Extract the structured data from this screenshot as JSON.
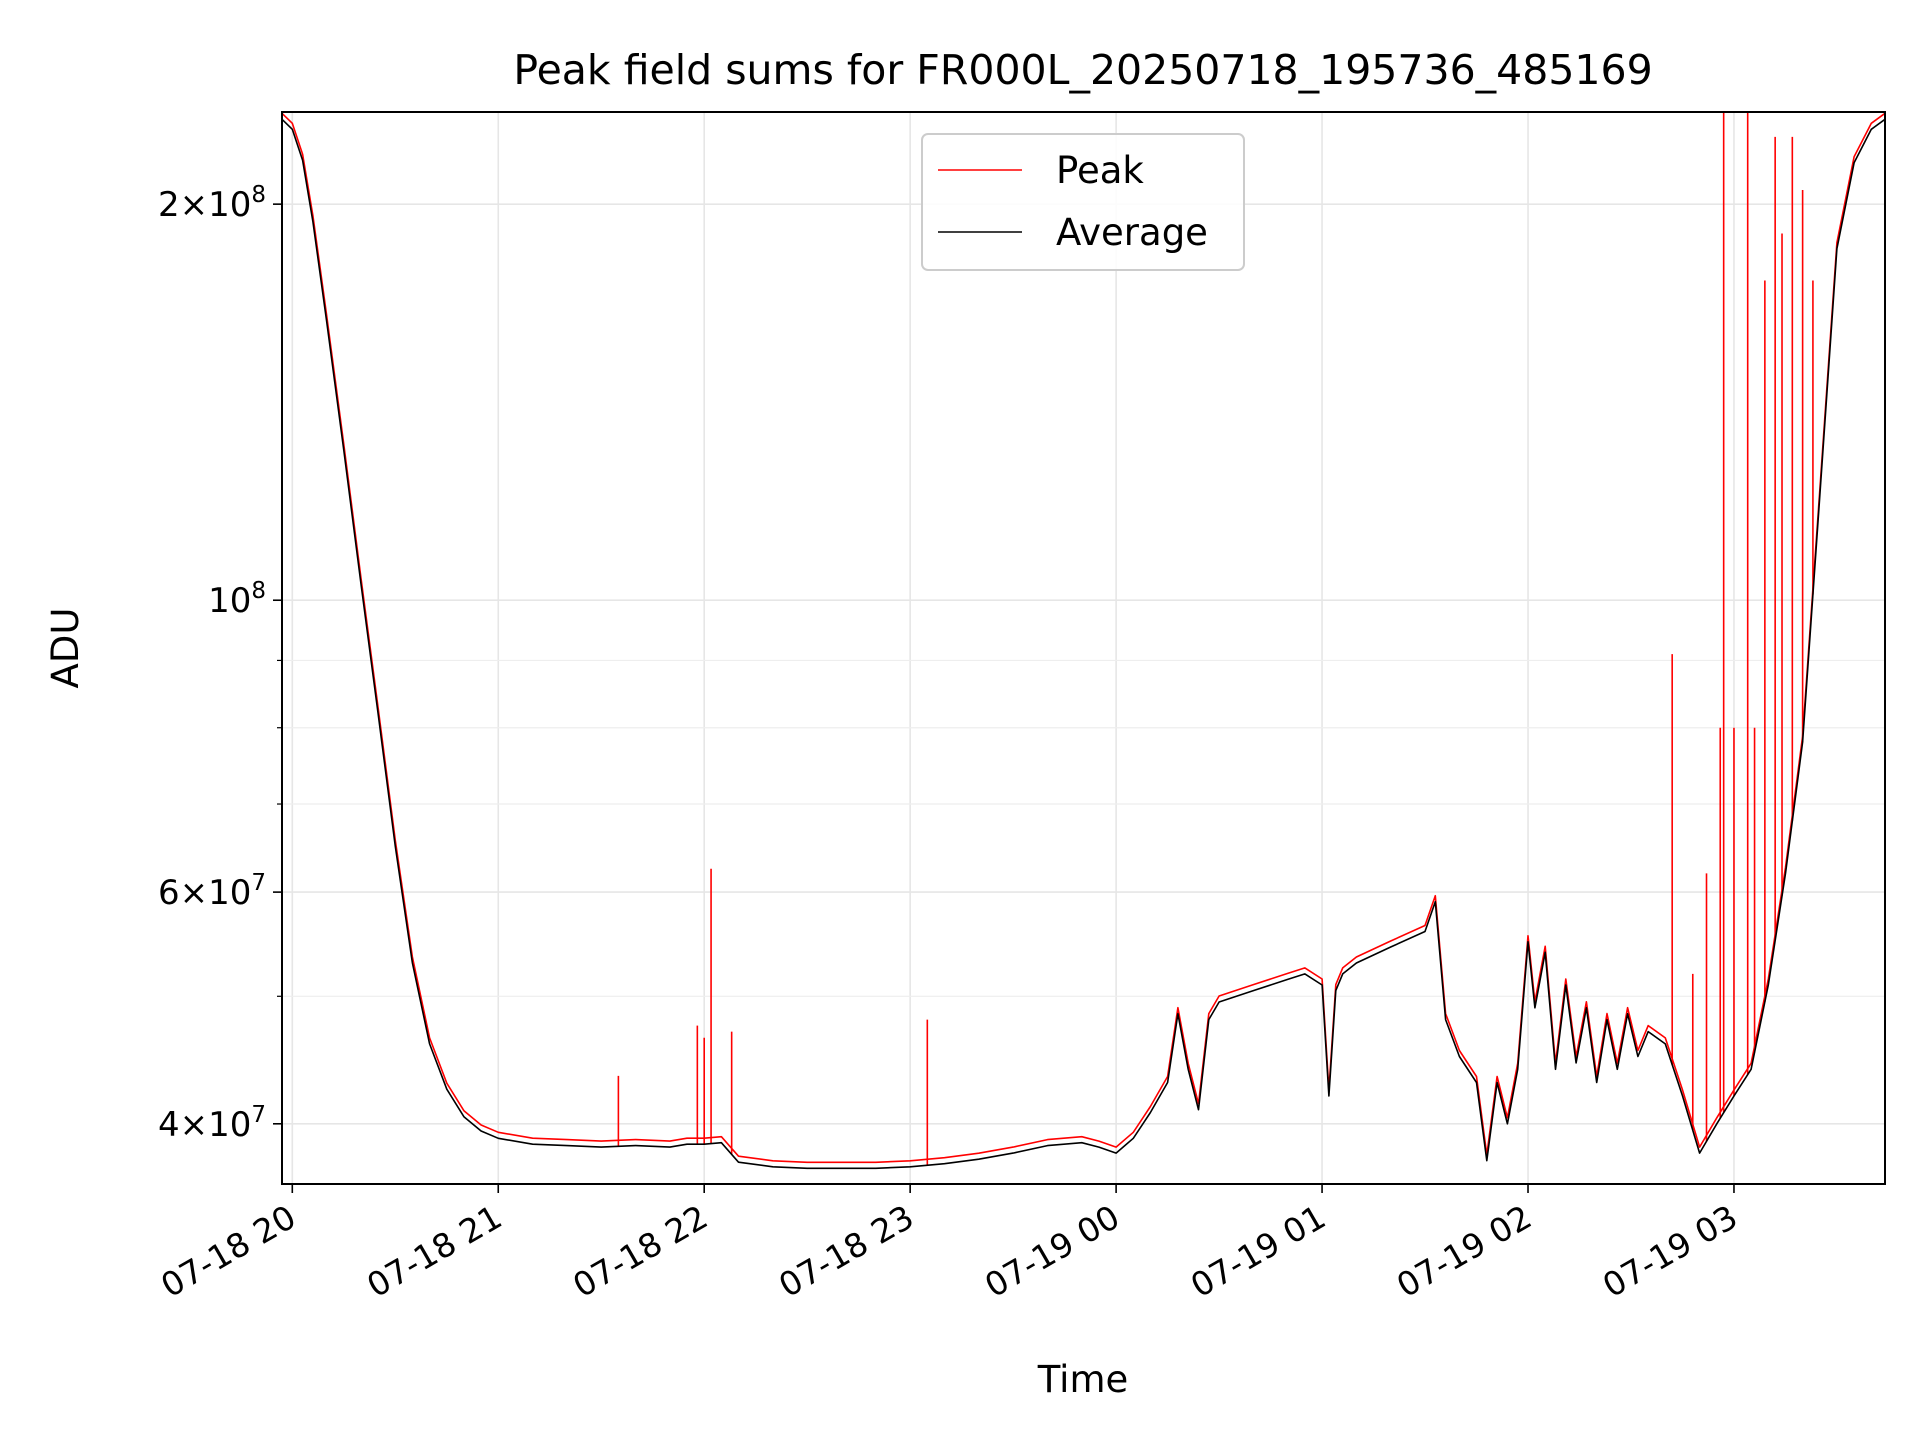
{
  "chart_data": {
    "type": "line",
    "title": "Peak field sums for FR000L_20250718_195736_485169",
    "xlabel": "Time",
    "ylabel": "ADU",
    "y_scale": "log",
    "grid": true,
    "legend_placement": "upper-center",
    "xlim": [
      "07-18 19:57",
      "07-19 03:44"
    ],
    "ylim": [
      36000000,
      235000000
    ],
    "x_ticks": [
      "07-18 20",
      "07-18 21",
      "07-18 22",
      "07-18 23",
      "07-19 00",
      "07-19 01",
      "07-19 02",
      "07-19 03"
    ],
    "y_major_ticks": [
      {
        "value": 40000000,
        "mantissa": "4",
        "exp": "7"
      },
      {
        "value": 60000000,
        "mantissa": "6",
        "exp": "7"
      },
      {
        "value": 100000000,
        "mantissa": "",
        "exp": "8"
      },
      {
        "value": 200000000,
        "mantissa": "2",
        "exp": "8"
      }
    ],
    "y_minor_ticks": [
      50000000,
      70000000,
      80000000,
      90000000
    ],
    "series": [
      {
        "name": "Average",
        "color": "#000000",
        "x": [
          "07-18 19:57",
          "07-18 20:00",
          "07-18 20:03",
          "07-18 20:06",
          "07-18 20:10",
          "07-18 20:15",
          "07-18 20:20",
          "07-18 20:25",
          "07-18 20:30",
          "07-18 20:35",
          "07-18 20:40",
          "07-18 20:45",
          "07-18 20:50",
          "07-18 20:55",
          "07-18 21:00",
          "07-18 21:10",
          "07-18 21:20",
          "07-18 21:30",
          "07-18 21:40",
          "07-18 21:50",
          "07-18 21:55",
          "07-18 22:00",
          "07-18 22:05",
          "07-18 22:10",
          "07-18 22:20",
          "07-18 22:30",
          "07-18 22:40",
          "07-18 22:50",
          "07-18 23:00",
          "07-18 23:10",
          "07-18 23:20",
          "07-18 23:30",
          "07-18 23:40",
          "07-18 23:50",
          "07-18 23:55",
          "07-19 00:00",
          "07-19 00:05",
          "07-19 00:10",
          "07-19 00:15",
          "07-19 00:18",
          "07-19 00:21",
          "07-19 00:24",
          "07-19 00:27",
          "07-19 00:30",
          "07-19 00:40",
          "07-19 00:50",
          "07-19 00:55",
          "07-19 01:00",
          "07-19 01:02",
          "07-19 01:04",
          "07-19 01:06",
          "07-19 01:10",
          "07-19 01:20",
          "07-19 01:30",
          "07-19 01:33",
          "07-19 01:36",
          "07-19 01:40",
          "07-19 01:45",
          "07-19 01:48",
          "07-19 01:51",
          "07-19 01:54",
          "07-19 01:57",
          "07-19 02:00",
          "07-19 02:02",
          "07-19 02:05",
          "07-19 02:08",
          "07-19 02:11",
          "07-19 02:14",
          "07-19 02:17",
          "07-19 02:20",
          "07-19 02:23",
          "07-19 02:26",
          "07-19 02:29",
          "07-19 02:32",
          "07-19 02:35",
          "07-19 02:40",
          "07-19 02:45",
          "07-19 02:50",
          "07-19 02:55",
          "07-19 03:00",
          "07-19 03:05",
          "07-19 03:10",
          "07-19 03:15",
          "07-19 03:20",
          "07-19 03:25",
          "07-19 03:30",
          "07-19 03:35",
          "07-19 03:40",
          "07-19 03:44"
        ],
        "y": [
          232000000,
          228000000,
          216000000,
          194000000,
          163000000,
          130000000,
          103000000,
          82000000,
          65000000,
          53000000,
          46000000,
          42500000,
          40500000,
          39500000,
          39000000,
          38600000,
          38500000,
          38400000,
          38500000,
          38400000,
          38600000,
          38600000,
          38700000,
          37400000,
          37100000,
          37000000,
          37000000,
          37000000,
          37100000,
          37300000,
          37600000,
          38000000,
          38500000,
          38700000,
          38400000,
          38000000,
          39000000,
          40800000,
          43000000,
          48500000,
          44000000,
          41000000,
          48000000,
          49500000,
          50500000,
          51500000,
          52000000,
          51000000,
          42000000,
          50500000,
          52000000,
          53000000,
          54500000,
          56000000,
          59000000,
          48000000,
          45000000,
          43000000,
          37500000,
          43000000,
          40000000,
          44000000,
          55000000,
          49000000,
          54000000,
          44000000,
          51000000,
          44500000,
          49000000,
          43000000,
          48000000,
          44000000,
          48500000,
          45000000,
          47000000,
          46000000,
          42000000,
          38000000,
          40000000,
          42000000,
          44000000,
          51000000,
          62000000,
          78000000,
          120000000,
          185000000,
          215000000,
          228000000,
          232000000
        ]
      },
      {
        "name": "Peak",
        "color": "#ff0000",
        "spikes": [
          {
            "x": "07-18 21:35",
            "y": 43500000
          },
          {
            "x": "07-18 21:58",
            "y": 47500000
          },
          {
            "x": "07-18 22:00",
            "y": 46500000
          },
          {
            "x": "07-18 22:02",
            "y": 62500000
          },
          {
            "x": "07-18 22:08",
            "y": 47000000
          },
          {
            "x": "07-18 23:05",
            "y": 48000000
          },
          {
            "x": "07-19 02:42",
            "y": 91000000
          },
          {
            "x": "07-19 02:48",
            "y": 52000000
          },
          {
            "x": "07-19 02:52",
            "y": 62000000
          },
          {
            "x": "07-19 02:56",
            "y": 80000000
          },
          {
            "x": "07-19 02:57",
            "y": 235000000
          },
          {
            "x": "07-19 03:00",
            "y": 80000000
          },
          {
            "x": "07-19 03:04",
            "y": 235000000
          },
          {
            "x": "07-19 03:06",
            "y": 80000000
          },
          {
            "x": "07-19 03:09",
            "y": 175000000
          },
          {
            "x": "07-19 03:12",
            "y": 225000000
          },
          {
            "x": "07-19 03:14",
            "y": 190000000
          },
          {
            "x": "07-19 03:17",
            "y": 225000000
          },
          {
            "x": "07-19 03:20",
            "y": 205000000
          },
          {
            "x": "07-19 03:23",
            "y": 175000000
          }
        ]
      }
    ]
  }
}
